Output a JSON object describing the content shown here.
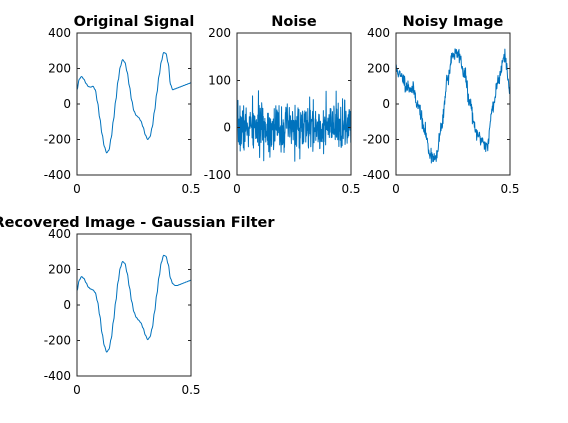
{
  "figure": {
    "background": "#ffffff",
    "axis_color": "#262626",
    "line_color": "#0072BD"
  },
  "chart_data": [
    {
      "type": "line",
      "title": "Original Signal",
      "xlabel": "",
      "ylabel": "",
      "xlim": [
        0,
        0.5
      ],
      "ylim": [
        -400,
        400
      ],
      "xticks": [
        0,
        0.5
      ],
      "xtick_labels": [
        "0",
        "0.5"
      ],
      "yticks": [
        400,
        200,
        0,
        -200,
        -400
      ],
      "ytick_labels": [
        "400",
        "200",
        "0",
        "-200",
        "-400"
      ],
      "grid": false,
      "series": [
        {
          "x": [
            0,
            0.01,
            0.02,
            0.03,
            0.04,
            0.05,
            0.06,
            0.07,
            0.08,
            0.09,
            0.1,
            0.11,
            0.12,
            0.13,
            0.14,
            0.15,
            0.16,
            0.17,
            0.18,
            0.19,
            0.2,
            0.21,
            0.22,
            0.23,
            0.24,
            0.25,
            0.26,
            0.27,
            0.28,
            0.29,
            0.3,
            0.31,
            0.32,
            0.33,
            0.34,
            0.35,
            0.36,
            0.37,
            0.38,
            0.39,
            0.4,
            0.41,
            0.42,
            0.43,
            0.44,
            0.45,
            0.46,
            0.47,
            0.48,
            0.49,
            0.5
          ],
          "values": [
            80,
            140,
            155,
            140,
            115,
            98,
            95,
            100,
            80,
            10,
            -80,
            -170,
            -240,
            -275,
            -260,
            -190,
            -90,
            20,
            130,
            210,
            250,
            235,
            180,
            100,
            20,
            -40,
            -65,
            -75,
            -95,
            -130,
            -175,
            -200,
            -185,
            -130,
            -40,
            60,
            160,
            240,
            290,
            285,
            230,
            110,
            80,
            85,
            90,
            95,
            100,
            105,
            110,
            115,
            120
          ]
        }
      ]
    },
    {
      "type": "line",
      "title": "Noise",
      "xlabel": "",
      "ylabel": "",
      "xlim": [
        0,
        0.5
      ],
      "ylim": [
        -100,
        200
      ],
      "xticks": [
        0,
        0.5
      ],
      "xtick_labels": [
        "0",
        "0.5"
      ],
      "yticks": [
        200,
        100,
        0,
        -100
      ],
      "ytick_labels": [
        "200",
        "100",
        "0",
        "-100"
      ],
      "grid": false,
      "series": [
        {
          "x_range": [
            0,
            0.5
          ],
          "points": 500,
          "noise_std": 25,
          "mean": 0,
          "seed": 7
        }
      ]
    },
    {
      "type": "line",
      "title": "Noisy Image",
      "xlabel": "",
      "ylabel": "",
      "xlim": [
        0,
        0.5
      ],
      "ylim": [
        -400,
        400
      ],
      "xticks": [
        0,
        0.5
      ],
      "xtick_labels": [
        "0",
        "0.5"
      ],
      "yticks": [
        400,
        200,
        0,
        -200,
        -400
      ],
      "ytick_labels": [
        "400",
        "200",
        "0",
        "-200",
        "-400"
      ],
      "grid": false,
      "series": [
        {
          "x": [
            0,
            0.025,
            0.05,
            0.075,
            0.1,
            0.125,
            0.15,
            0.175,
            0.2,
            0.225,
            0.25,
            0.275,
            0.3,
            0.325,
            0.35,
            0.375,
            0.4,
            0.425,
            0.45,
            0.475,
            0.5
          ],
          "values": [
            195,
            150,
            100,
            80,
            -20,
            -150,
            -280,
            -310,
            -130,
            140,
            280,
            280,
            170,
            0,
            -160,
            -200,
            -240,
            -10,
            140,
            280,
            80
          ],
          "noise_std": 20,
          "seed": 11
        }
      ]
    },
    {
      "type": "line",
      "title": "Recovered Image - Gaussian Filter",
      "xlabel": "",
      "ylabel": "",
      "xlim": [
        0,
        0.5
      ],
      "ylim": [
        -400,
        400
      ],
      "xticks": [
        0,
        0.5
      ],
      "xtick_labels": [
        "0",
        "0.5"
      ],
      "yticks": [
        400,
        200,
        0,
        -200,
        -400
      ],
      "ytick_labels": [
        "400",
        "200",
        "0",
        "-200",
        "-400"
      ],
      "grid": false,
      "series": [
        {
          "x": [
            0,
            0.01,
            0.02,
            0.03,
            0.04,
            0.05,
            0.06,
            0.07,
            0.08,
            0.09,
            0.1,
            0.11,
            0.12,
            0.13,
            0.14,
            0.15,
            0.16,
            0.17,
            0.18,
            0.19,
            0.2,
            0.21,
            0.22,
            0.23,
            0.24,
            0.25,
            0.26,
            0.27,
            0.28,
            0.29,
            0.3,
            0.31,
            0.32,
            0.33,
            0.34,
            0.35,
            0.36,
            0.37,
            0.38,
            0.39,
            0.4,
            0.41,
            0.42,
            0.43,
            0.44,
            0.45,
            0.46,
            0.47,
            0.48,
            0.49,
            0.5
          ],
          "values": [
            80,
            140,
            160,
            150,
            125,
            100,
            90,
            85,
            70,
            20,
            -60,
            -160,
            -230,
            -265,
            -250,
            -190,
            -90,
            20,
            130,
            210,
            245,
            235,
            180,
            100,
            20,
            -40,
            -70,
            -85,
            -100,
            -130,
            -170,
            -195,
            -180,
            -130,
            -40,
            60,
            160,
            240,
            280,
            275,
            230,
            150,
            120,
            110,
            110,
            115,
            120,
            125,
            130,
            135,
            140
          ]
        }
      ]
    }
  ]
}
